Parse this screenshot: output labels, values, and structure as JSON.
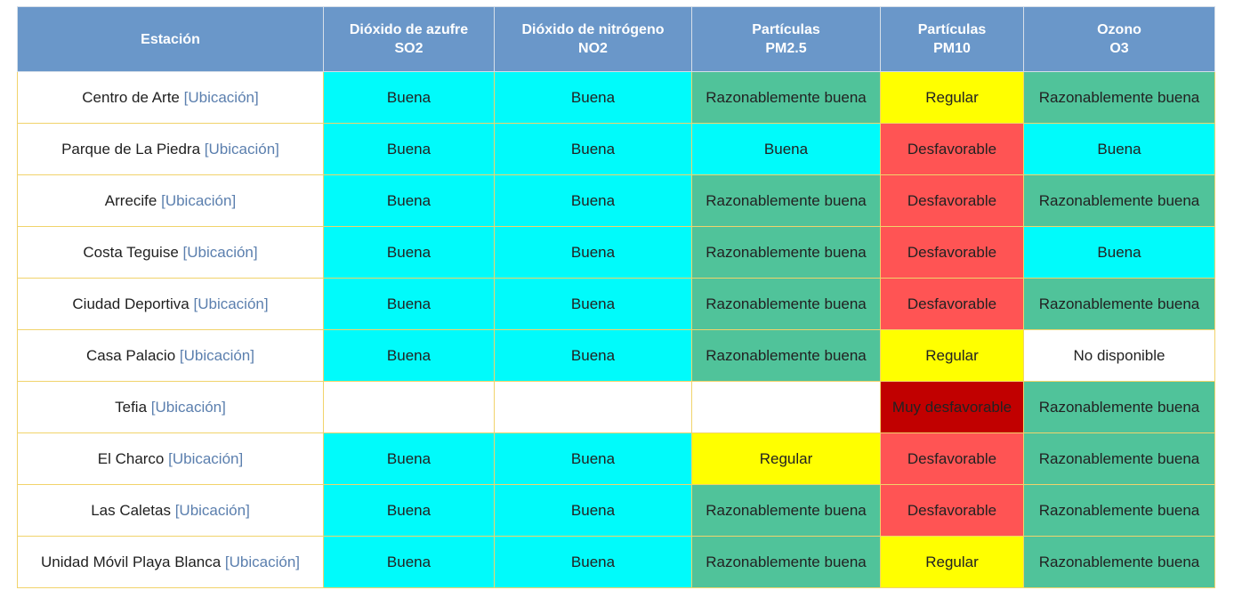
{
  "colors": {
    "header_bg": "#6a97c9",
    "buena": "#00fbfb",
    "razonablemente_buena": "#50c39a",
    "regular": "#ffff00",
    "desfavorable": "#ff5454",
    "muy_desfavorable": "#c10000",
    "no_disponible": "#ffffff",
    "border": "#f1d36b",
    "link": "#5b7fae"
  },
  "headers": [
    {
      "line1": "Estación",
      "line2": ""
    },
    {
      "line1": "Dióxido de azufre",
      "line2": "SO2"
    },
    {
      "line1": "Dióxido de nitrógeno",
      "line2": "NO2"
    },
    {
      "line1": "Partículas",
      "line2": "PM2.5"
    },
    {
      "line1": "Partículas",
      "line2": "PM10"
    },
    {
      "line1": "Ozono",
      "line2": "O3"
    }
  ],
  "link_label": "[Ubicación]",
  "rows": [
    {
      "station": "Centro de Arte",
      "cells": [
        "Buena",
        "Buena",
        "Razonablemente buena",
        "Regular",
        "Razonablemente buena"
      ]
    },
    {
      "station": "Parque de La Piedra",
      "cells": [
        "Buena",
        "Buena",
        "Buena",
        "Desfavorable",
        "Buena"
      ]
    },
    {
      "station": "Arrecife",
      "cells": [
        "Buena",
        "Buena",
        "Razonablemente buena",
        "Desfavorable",
        "Razonablemente buena"
      ]
    },
    {
      "station": "Costa Teguise",
      "cells": [
        "Buena",
        "Buena",
        "Razonablemente buena",
        "Desfavorable",
        "Buena"
      ]
    },
    {
      "station": "Ciudad Deportiva",
      "cells": [
        "Buena",
        "Buena",
        "Razonablemente buena",
        "Desfavorable",
        "Razonablemente buena"
      ]
    },
    {
      "station": "Casa Palacio",
      "cells": [
        "Buena",
        "Buena",
        "Razonablemente buena",
        "Regular",
        "No disponible"
      ]
    },
    {
      "station": "Tefia",
      "cells": [
        "",
        "",
        "",
        "Muy desfavorable",
        "Razonablemente buena"
      ]
    },
    {
      "station": "El Charco",
      "cells": [
        "Buena",
        "Buena",
        "Regular",
        "Desfavorable",
        "Razonablemente buena"
      ]
    },
    {
      "station": "Las Caletas",
      "cells": [
        "Buena",
        "Buena",
        "Razonablemente buena",
        "Desfavorable",
        "Razonablemente buena"
      ]
    },
    {
      "station": "Unidad Móvil Playa Blanca",
      "cells": [
        "Buena",
        "Buena",
        "Razonablemente buena",
        "Regular",
        "Razonablemente buena"
      ]
    }
  ]
}
